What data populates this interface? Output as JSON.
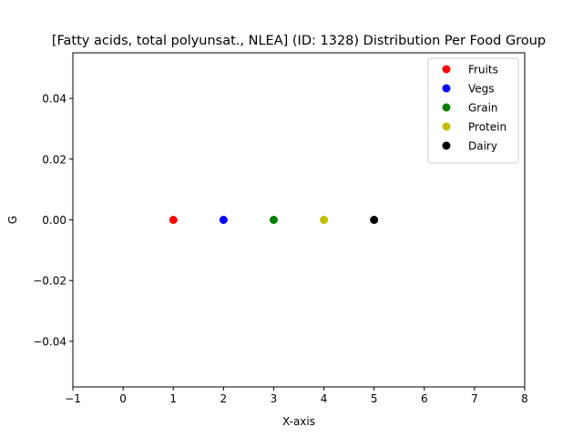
{
  "chart_data": {
    "type": "scatter",
    "title": "[Fatty acids, total polyunsat., NLEA] (ID: 1328) Distribution Per Food Group",
    "xlabel": "X-axis",
    "ylabel": "G",
    "xlim": [
      -1,
      8
    ],
    "ylim": [
      -0.055,
      0.055
    ],
    "xticks": [
      -1,
      0,
      1,
      2,
      3,
      4,
      5,
      6,
      7,
      8
    ],
    "xtick_labels": [
      "−1",
      "0",
      "1",
      "2",
      "3",
      "4",
      "5",
      "6",
      "7",
      "8"
    ],
    "yticks": [
      -0.04,
      -0.02,
      0.0,
      0.02,
      0.04
    ],
    "ytick_labels": [
      "−0.04",
      "−0.02",
      "0.00",
      "0.02",
      "0.04"
    ],
    "grid": false,
    "legend_position": "top-right",
    "series": [
      {
        "name": "Fruits",
        "color": "#ff0000",
        "points": [
          [
            1,
            0.0
          ]
        ]
      },
      {
        "name": "Vegs",
        "color": "#0000ff",
        "points": [
          [
            2,
            0.0
          ]
        ]
      },
      {
        "name": "Grain",
        "color": "#008000",
        "points": [
          [
            3,
            0.0
          ]
        ]
      },
      {
        "name": "Protein",
        "color": "#bfbf00",
        "points": [
          [
            4,
            0.0
          ]
        ]
      },
      {
        "name": "Dairy",
        "color": "#000000",
        "points": [
          [
            5,
            0.0
          ]
        ]
      }
    ]
  }
}
